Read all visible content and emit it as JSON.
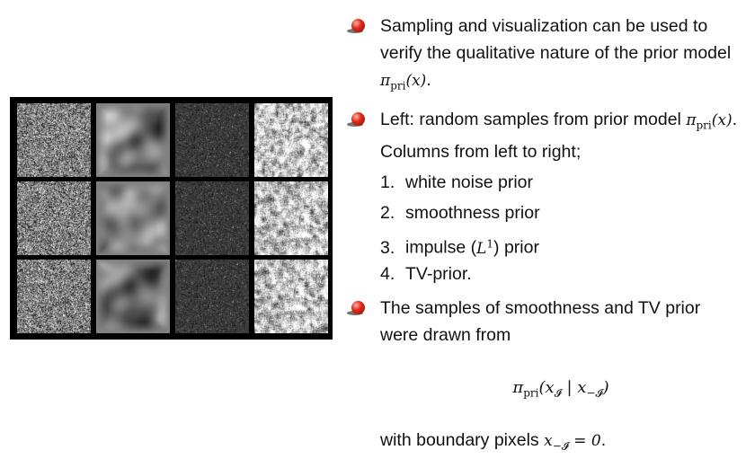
{
  "figure": {
    "columns": [
      "white noise prior",
      "smoothness prior",
      "impulse prior",
      "TV-prior"
    ],
    "rows": 3,
    "colors": {
      "frame": "#000000",
      "bullet": "#d42416"
    }
  },
  "bullets": [
    {
      "text_before": "Sampling and visualization can be used to verify the qualitative nature of the prior model ",
      "math": "π",
      "math_sub": "pri",
      "math_arg": "(x)",
      "text_after": "."
    },
    {
      "text_before": "Left: random samples from prior model ",
      "math": "π",
      "math_sub": "pri",
      "math_arg": "(x)",
      "text_after": ". Columns from left to right;"
    },
    {
      "text": "The samples of smoothness and TV prior were drawn from"
    }
  ],
  "list": [
    {
      "num": "1.",
      "label": "white noise prior"
    },
    {
      "num": "2.",
      "label": "smoothness prior"
    },
    {
      "num": "3.",
      "label_before": "impulse (",
      "math": "L",
      "math_sup": "1",
      "label_after": ") prior"
    },
    {
      "num": "4.",
      "label": "TV-prior."
    }
  ],
  "formula": {
    "pi": "π",
    "sub": "pri",
    "open": "(x",
    "sub1": "𝓘",
    "bar": " | x",
    "sub2": "−𝓘",
    "close": ")"
  },
  "boundary": {
    "text": "with boundary pixels ",
    "math": "x",
    "math_sub": "−𝓘",
    "math_rest": " = 0",
    "end": "."
  }
}
